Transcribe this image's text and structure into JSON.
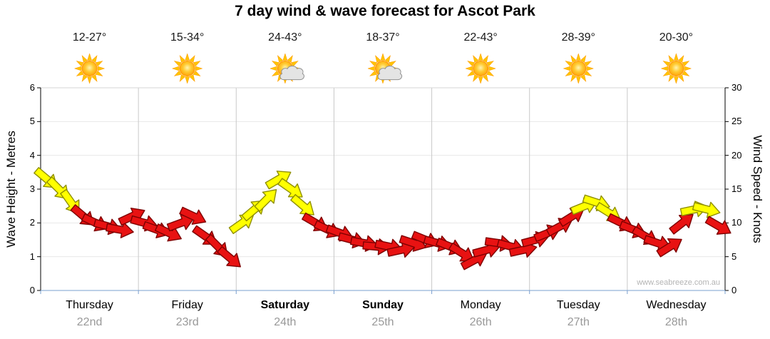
{
  "title": "7 day wind & wave forecast for Ascot Park",
  "watermark": "www.seabreeze.com.au",
  "axes": {
    "left_title": "Wave Height - Metres",
    "right_title": "Wind Speed - Knots",
    "left_ticks": [
      "0",
      "1",
      "2",
      "3",
      "4",
      "5",
      "6"
    ],
    "right_ticks": [
      "0",
      "5",
      "10",
      "15",
      "20",
      "25",
      "30"
    ]
  },
  "days": [
    {
      "name": "Thursday",
      "date": "22nd",
      "temp": "12-27°",
      "icon": "sun",
      "weekend": false
    },
    {
      "name": "Friday",
      "date": "23rd",
      "temp": "15-34°",
      "icon": "sun",
      "weekend": false
    },
    {
      "name": "Saturday",
      "date": "24th",
      "temp": "24-43°",
      "icon": "sun-cloud",
      "weekend": true
    },
    {
      "name": "Sunday",
      "date": "25th",
      "temp": "18-37°",
      "icon": "sun-cloud",
      "weekend": true
    },
    {
      "name": "Monday",
      "date": "26th",
      "temp": "22-43°",
      "icon": "sun",
      "weekend": false
    },
    {
      "name": "Tuesday",
      "date": "27th",
      "temp": "28-39°",
      "icon": "sun",
      "weekend": false
    },
    {
      "name": "Wednesday",
      "date": "28th",
      "temp": "20-30°",
      "icon": "sun",
      "weekend": false
    }
  ],
  "chart_data": {
    "type": "wind-arrow-series",
    "title": "7 day wind & wave forecast for Ascot Park",
    "categories": [
      "Thursday 22nd",
      "Friday 23rd",
      "Saturday 24th",
      "Sunday 25th",
      "Monday 26th",
      "Tuesday 27th",
      "Wednesday 28th"
    ],
    "samples_per_day": 8,
    "y_left": {
      "label": "Wave Height - Metres",
      "range": [
        0,
        6
      ]
    },
    "y_right": {
      "label": "Wind Speed - Knots",
      "range": [
        0,
        30
      ]
    },
    "legend": "none",
    "grid": "vertical day boundaries + faint horizontal metre lines",
    "knots": [
      16.5,
      15,
      13,
      11,
      10,
      9.5,
      9,
      11,
      10,
      9,
      8.5,
      10,
      11,
      8,
      6.5,
      4.8,
      10,
      12,
      13.5,
      16.5,
      15,
      12.5,
      10,
      9,
      8.5,
      7.5,
      7,
      6.5,
      6.5,
      6,
      7,
      7.5,
      7,
      6.5,
      5.5,
      4.5,
      6,
      7,
      6.5,
      6,
      7.5,
      8.5,
      9.5,
      11,
      12.5,
      13,
      11.5,
      10,
      9,
      8,
      7,
      6.5,
      10,
      12,
      12,
      9.5
    ],
    "dir_deg": [
      40,
      45,
      55,
      40,
      25,
      15,
      10,
      -25,
      15,
      20,
      25,
      -20,
      25,
      35,
      45,
      40,
      -35,
      -40,
      -45,
      -30,
      35,
      40,
      30,
      25,
      20,
      15,
      10,
      5,
      12,
      -12,
      18,
      22,
      15,
      22,
      32,
      -28,
      -15,
      8,
      15,
      -12,
      -15,
      -22,
      -28,
      -32,
      -22,
      18,
      32,
      26,
      22,
      30,
      18,
      -32,
      -38,
      -12,
      14,
      30
    ],
    "color": [
      "Y",
      "Y",
      "Y",
      "R",
      "R",
      "R",
      "R",
      "R",
      "R",
      "R",
      "R",
      "R",
      "R",
      "R",
      "R",
      "R",
      "Y",
      "Y",
      "Y",
      "Y",
      "Y",
      "Y",
      "R",
      "R",
      "R",
      "R",
      "R",
      "R",
      "R",
      "R",
      "R",
      "R",
      "R",
      "R",
      "R",
      "R",
      "R",
      "R",
      "R",
      "R",
      "R",
      "R",
      "R",
      "R",
      "Y",
      "Y",
      "Y",
      "R",
      "R",
      "R",
      "R",
      "R",
      "R",
      "Y",
      "Y",
      "R"
    ]
  },
  "colors": {
    "arrow_red": "#e81212",
    "arrow_red_outline": "#7d0000",
    "arrow_yellow": "#ffff00",
    "arrow_yellow_outline": "#8f8f00",
    "axis_bottom": "#7aa0cf",
    "grid_vertical": "#c9c9c9",
    "grid_horizontal": "#e8e8e8",
    "date_gray": "#999999",
    "sun_core": "#ff9900",
    "cloud_gray": "#e4e4e4"
  }
}
